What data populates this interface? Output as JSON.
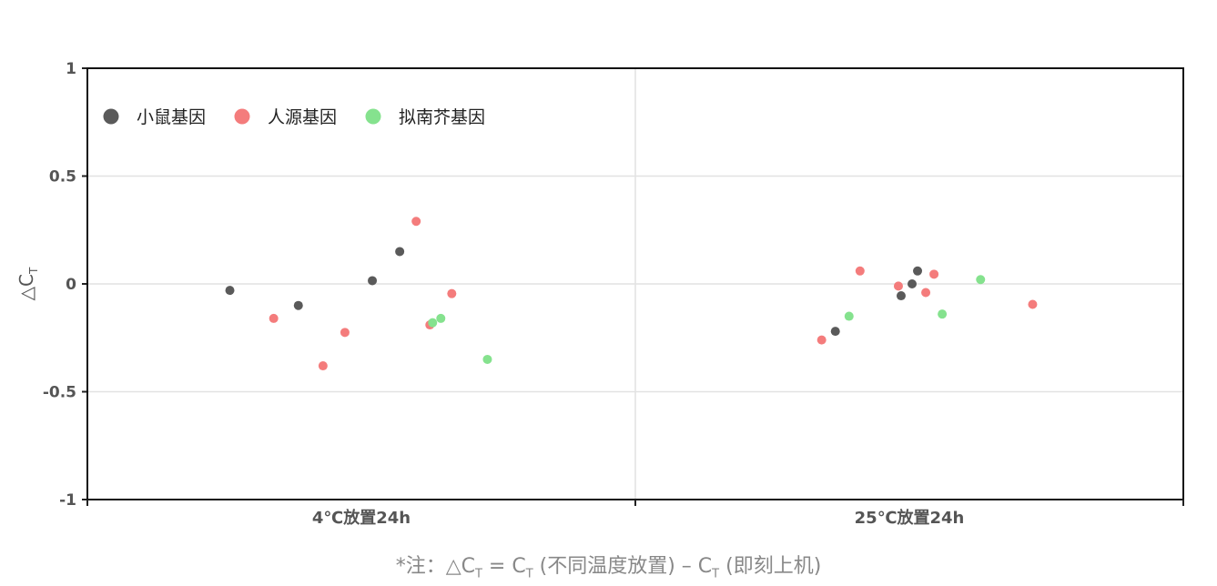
{
  "chart_data": {
    "type": "scatter",
    "ylabel": "△C",
    "ylabel_sub": "T",
    "ylim": [
      -1,
      1
    ],
    "yticks": [
      1,
      0.5,
      0,
      -0.5,
      -1
    ],
    "ytick_labels": [
      "1",
      "0.5",
      "0",
      "-0.5",
      "-1"
    ],
    "categories": [
      "4℃放置24h",
      "25℃放置24h"
    ],
    "grid": true,
    "legend_position": "top-left",
    "series": [
      {
        "name": "小鼠基因",
        "color": "#5a5a5a",
        "points": [
          {
            "category": 0,
            "offset": -0.48,
            "y": -0.03
          },
          {
            "category": 0,
            "offset": -0.23,
            "y": -0.1
          },
          {
            "category": 0,
            "offset": 0.04,
            "y": 0.015
          },
          {
            "category": 0,
            "offset": 0.14,
            "y": 0.15
          },
          {
            "category": 1,
            "offset": -0.27,
            "y": -0.22
          },
          {
            "category": 1,
            "offset": -0.03,
            "y": -0.055
          },
          {
            "category": 1,
            "offset": 0.01,
            "y": 0.0
          },
          {
            "category": 1,
            "offset": 0.03,
            "y": 0.06
          }
        ]
      },
      {
        "name": "人源基因",
        "color": "#f47c7c",
        "points": [
          {
            "category": 0,
            "offset": -0.32,
            "y": -0.16
          },
          {
            "category": 0,
            "offset": -0.14,
            "y": -0.38
          },
          {
            "category": 0,
            "offset": -0.06,
            "y": -0.225
          },
          {
            "category": 0,
            "offset": 0.2,
            "y": 0.29
          },
          {
            "category": 0,
            "offset": 0.25,
            "y": -0.19
          },
          {
            "category": 0,
            "offset": 0.33,
            "y": -0.045
          },
          {
            "category": 1,
            "offset": -0.32,
            "y": -0.26
          },
          {
            "category": 1,
            "offset": -0.18,
            "y": 0.06
          },
          {
            "category": 1,
            "offset": -0.04,
            "y": -0.01
          },
          {
            "category": 1,
            "offset": 0.06,
            "y": -0.04
          },
          {
            "category": 1,
            "offset": 0.09,
            "y": 0.045
          },
          {
            "category": 1,
            "offset": 0.45,
            "y": -0.095
          }
        ]
      },
      {
        "name": "拟南芥基因",
        "color": "#85e28e",
        "points": [
          {
            "category": 0,
            "offset": 0.26,
            "y": -0.18
          },
          {
            "category": 0,
            "offset": 0.29,
            "y": -0.16
          },
          {
            "category": 0,
            "offset": 0.46,
            "y": -0.35
          },
          {
            "category": 1,
            "offset": -0.22,
            "y": -0.15
          },
          {
            "category": 1,
            "offset": 0.12,
            "y": -0.14
          },
          {
            "category": 1,
            "offset": 0.26,
            "y": 0.02
          }
        ]
      }
    ]
  },
  "footnote": {
    "prefix": "*注：△C",
    "sub1": "T",
    "mid": " = C",
    "sub2": "T",
    "mid2": " (不同温度放置) – C",
    "sub3": "T",
    "suffix": " (即刻上机)"
  }
}
